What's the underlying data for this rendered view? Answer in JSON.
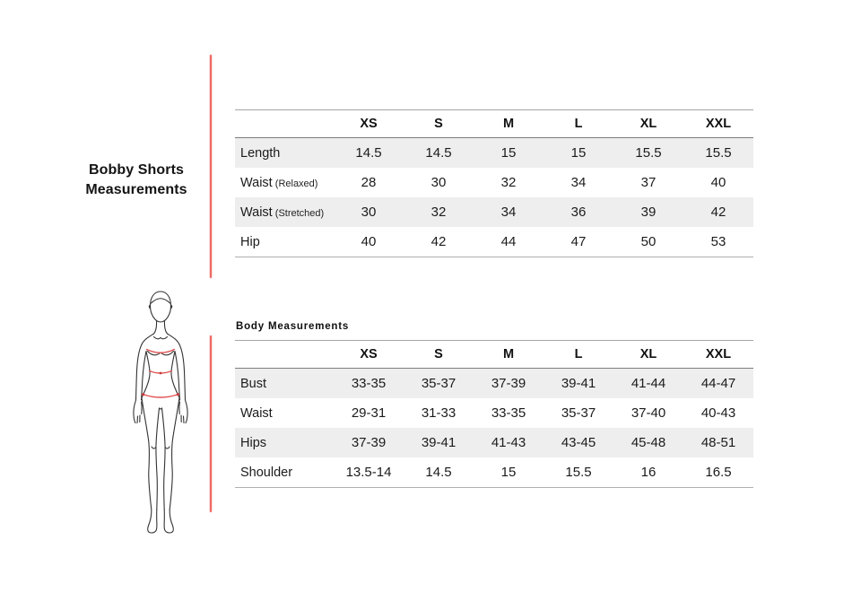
{
  "page": {
    "title_line1": "Bobby Shorts",
    "title_line2": "Measurements"
  },
  "colors": {
    "accent_red": "#ef6a66",
    "row_stripe": "#eeeeee",
    "figure_measure_red": "#e05252"
  },
  "shorts_table": {
    "sizes": [
      "XS",
      "S",
      "M",
      "L",
      "XL",
      "XXL"
    ],
    "rows": [
      {
        "label": "Length",
        "sublabel": "",
        "values": [
          "14.5",
          "14.5",
          "15",
          "15",
          "15.5",
          "15.5"
        ]
      },
      {
        "label": "Waist",
        "sublabel": "(Relaxed)",
        "values": [
          "28",
          "30",
          "32",
          "34",
          "37",
          "40"
        ]
      },
      {
        "label": "Waist",
        "sublabel": "(Stretched)",
        "values": [
          "30",
          "32",
          "34",
          "36",
          "39",
          "42"
        ]
      },
      {
        "label": "Hip",
        "sublabel": "",
        "values": [
          "40",
          "42",
          "44",
          "47",
          "50",
          "53"
        ]
      }
    ]
  },
  "body_table": {
    "title": "Body Measurements",
    "sizes": [
      "XS",
      "S",
      "M",
      "L",
      "XL",
      "XXL"
    ],
    "rows": [
      {
        "label": "Bust",
        "sublabel": "",
        "values": [
          "33-35",
          "35-37",
          "37-39",
          "39-41",
          "41-44",
          "44-47"
        ]
      },
      {
        "label": "Waist",
        "sublabel": "",
        "values": [
          "29-31",
          "31-33",
          "33-35",
          "35-37",
          "37-40",
          "40-43"
        ]
      },
      {
        "label": "Hips",
        "sublabel": "",
        "values": [
          "37-39",
          "39-41",
          "41-43",
          "43-45",
          "45-48",
          "48-51"
        ]
      },
      {
        "label": "Shoulder",
        "sublabel": "",
        "values": [
          "13.5-14",
          "14.5",
          "15",
          "15.5",
          "16",
          "16.5"
        ]
      }
    ]
  },
  "figure": {
    "name": "female-body-outline",
    "measurement_lines": [
      "bust",
      "waist",
      "hip"
    ]
  }
}
